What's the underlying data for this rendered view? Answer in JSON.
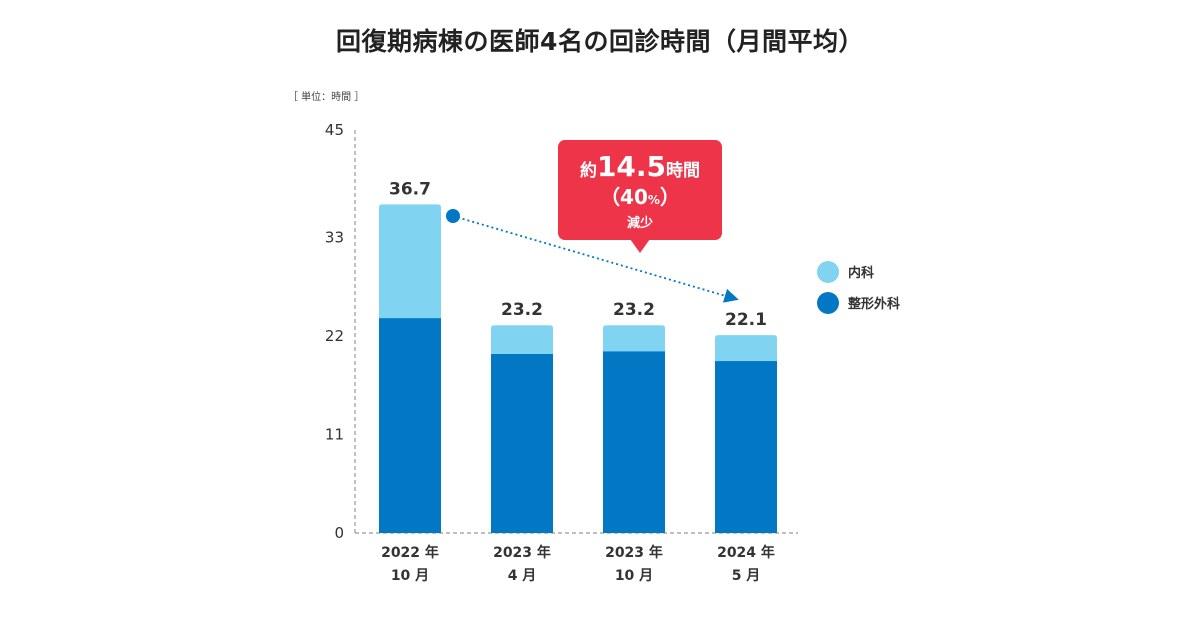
{
  "chart_data": {
    "type": "bar",
    "stacked": true,
    "title": "回復期病棟の医師4名の回診時間（月間平均）",
    "unit_label": "［ 単位：時間 ］",
    "categories": [
      [
        "2022 年",
        "10 月"
      ],
      [
        "2023 年",
        "4 月"
      ],
      [
        "2023 年",
        "10 月"
      ],
      [
        "2024 年",
        "5 月"
      ]
    ],
    "series": [
      {
        "name": "整形外科",
        "color": "#0277c4",
        "values": [
          24.0,
          20.0,
          20.3,
          19.2
        ]
      },
      {
        "name": "内科",
        "color": "#81d3f2",
        "values": [
          12.7,
          3.2,
          2.9,
          2.9
        ]
      }
    ],
    "totals": [
      "36.7",
      "23.2",
      "23.2",
      "22.1"
    ],
    "ylim": [
      0,
      45
    ],
    "yticks": [
      0,
      11,
      22,
      33,
      45
    ],
    "legend_position": "right",
    "grid": false,
    "callout": {
      "prefix": "約",
      "value": "14.5",
      "suffix": "時間",
      "line2_open": "（40",
      "line2_pct": "%",
      "line2_close": "）",
      "line3": "減少",
      "color": "#ee3449"
    },
    "trend_color": "#0277c4"
  }
}
